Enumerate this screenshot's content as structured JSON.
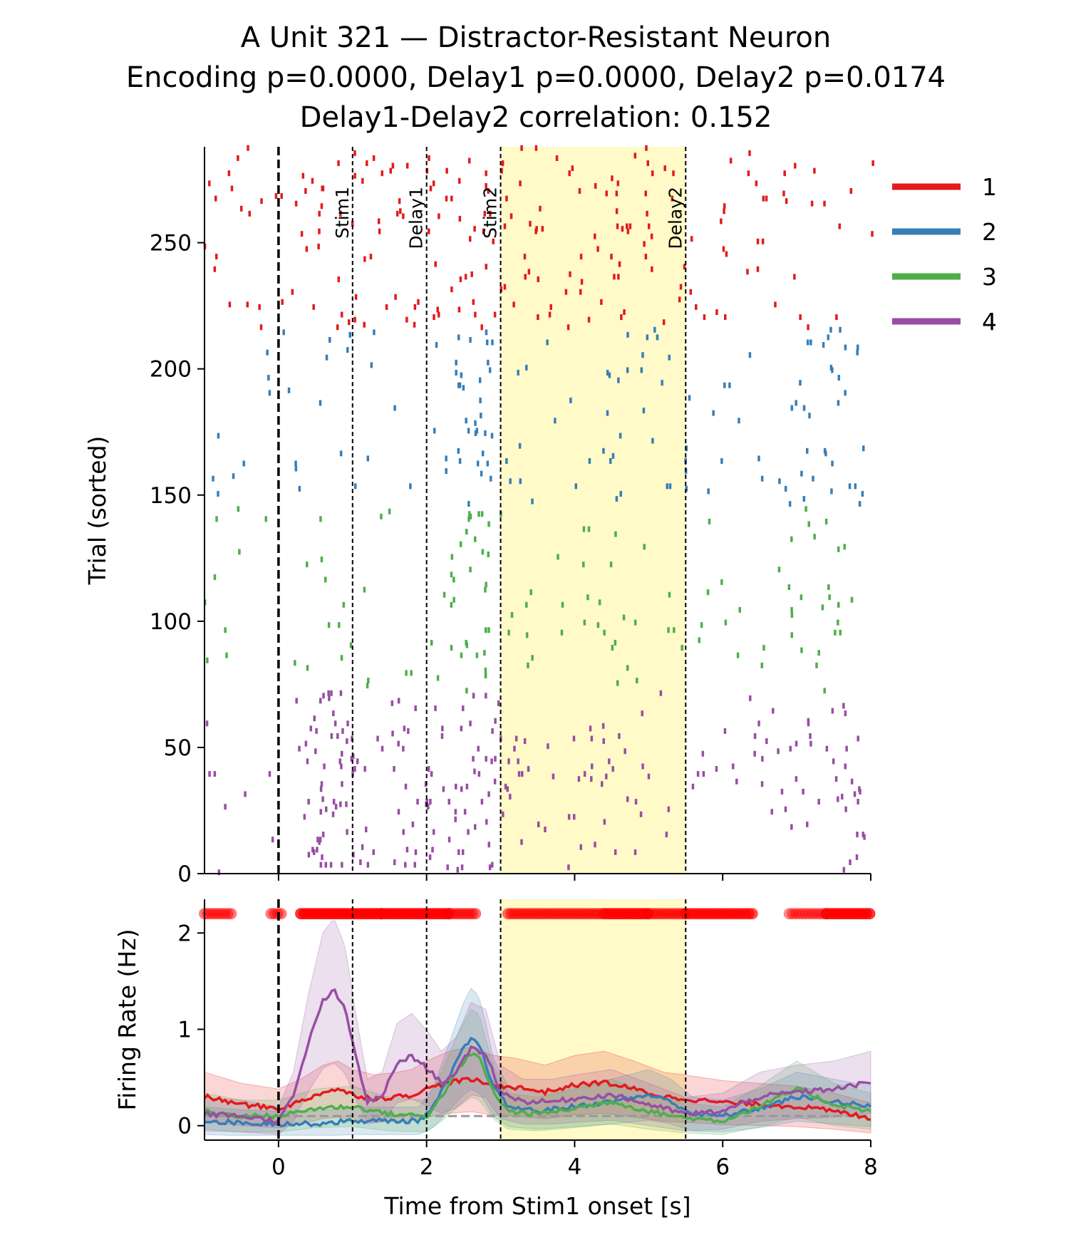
{
  "title": {
    "line1": "A Unit 321 — Distractor-Resistant Neuron",
    "line2": "Encoding p=0.0000, Delay1 p=0.0000, Delay2 p=0.0174",
    "line3": "Delay1-Delay2 correlation: 0.152"
  },
  "colors": {
    "cond1": "#e41a1c",
    "cond2": "#377eb8",
    "cond3": "#4daf4a",
    "cond4": "#984ea3",
    "highlight": "#fffac8",
    "baseline": "#999999",
    "signif": "#ff0000"
  },
  "chart_data": [
    {
      "type": "scatter",
      "subtype": "raster",
      "xlim": [
        -1,
        8
      ],
      "ylim": [
        0,
        288
      ],
      "ylabel": "Trial (sorted)",
      "yticks": [
        "0",
        "50",
        "100",
        "150",
        "200",
        "250"
      ],
      "ytick_values": [
        0,
        50,
        100,
        150,
        200,
        250
      ],
      "events": [
        {
          "t": 0,
          "label": "",
          "style": "bold"
        },
        {
          "t": 1,
          "label": "Stim1"
        },
        {
          "t": 2,
          "label": "Delay1"
        },
        {
          "t": 3,
          "label": "Stim2"
        },
        {
          "t": 5.5,
          "label": "Delay2"
        }
      ],
      "highlight_window": [
        3,
        5.5
      ],
      "condition_trial_ranges": [
        [
          0,
          72
        ],
        [
          72,
          145
        ],
        [
          145,
          216
        ],
        [
          216,
          288
        ]
      ],
      "condition_order_bottom_to_top": [
        "4",
        "3",
        "2",
        "1"
      ],
      "spike_density_note": "spikes drawn per condition; elevated rates follow the firing-rate traces"
    },
    {
      "type": "line",
      "xlabel": "Time from Stim1 onset [s]",
      "ylabel": "Firing Rate (Hz)",
      "xlim": [
        -1,
        8
      ],
      "ylim": [
        -0.15,
        2.35
      ],
      "xticks": [
        "0",
        "2",
        "4",
        "6",
        "8"
      ],
      "xtick_values": [
        0,
        2,
        4,
        6,
        8
      ],
      "yticks": [
        "0",
        "1",
        "2"
      ],
      "ytick_values": [
        0,
        1,
        2
      ],
      "baseline": 0.1,
      "legend": {
        "placement": "outside-right",
        "entries": [
          "1",
          "2",
          "3",
          "4"
        ]
      },
      "series": [
        {
          "name": "1",
          "x": [
            -1,
            -0.5,
            0,
            0.3,
            0.6,
            0.8,
            1,
            1.3,
            1.6,
            1.8,
            2,
            2.3,
            2.6,
            2.9,
            3.2,
            3.6,
            4,
            4.4,
            4.8,
            5.2,
            5.5,
            6,
            6.5,
            7,
            7.5,
            8
          ],
          "values": [
            0.3,
            0.22,
            0.18,
            0.25,
            0.35,
            0.38,
            0.32,
            0.28,
            0.3,
            0.32,
            0.38,
            0.45,
            0.48,
            0.42,
            0.4,
            0.35,
            0.42,
            0.45,
            0.38,
            0.3,
            0.28,
            0.24,
            0.22,
            0.2,
            0.15,
            0.08
          ]
        },
        {
          "name": "2",
          "x": [
            -1,
            -0.5,
            0,
            0.5,
            1,
            1.5,
            1.9,
            2.1,
            2.3,
            2.5,
            2.6,
            2.7,
            2.8,
            2.9,
            3.1,
            3.5,
            4,
            4.5,
            5,
            5.3,
            5.6,
            6,
            6.5,
            7,
            7.5,
            8
          ],
          "values": [
            0.05,
            0.03,
            0.02,
            0.02,
            0.05,
            0.05,
            0.05,
            0.2,
            0.5,
            0.8,
            0.9,
            0.85,
            0.65,
            0.4,
            0.2,
            0.15,
            0.2,
            0.25,
            0.32,
            0.25,
            0.12,
            0.1,
            0.18,
            0.3,
            0.25,
            0.2
          ]
        },
        {
          "name": "3",
          "x": [
            -1,
            -0.5,
            0,
            0.5,
            1,
            1.5,
            2,
            2.2,
            2.4,
            2.6,
            2.7,
            2.9,
            3.1,
            3.5,
            4,
            4.5,
            5,
            5.5,
            6,
            6.5,
            7,
            7.5,
            8
          ],
          "values": [
            0.15,
            0.1,
            0.1,
            0.18,
            0.2,
            0.12,
            0.1,
            0.3,
            0.55,
            0.75,
            0.72,
            0.35,
            0.15,
            0.12,
            0.18,
            0.25,
            0.15,
            0.08,
            0.05,
            0.2,
            0.38,
            0.22,
            0.15
          ]
        },
        {
          "name": "4",
          "x": [
            -1,
            -0.5,
            0,
            0.2,
            0.4,
            0.6,
            0.75,
            0.9,
            1.05,
            1.2,
            1.4,
            1.6,
            1.8,
            2,
            2.2,
            2.4,
            2.6,
            2.8,
            3,
            3.3,
            3.7,
            4,
            4.5,
            5,
            5.5,
            6,
            6.5,
            7,
            7.5,
            8
          ],
          "values": [
            0.12,
            0.1,
            0.05,
            0.3,
            0.85,
            1.3,
            1.4,
            1.2,
            0.7,
            0.25,
            0.3,
            0.65,
            0.72,
            0.6,
            0.45,
            0.55,
            0.8,
            0.75,
            0.35,
            0.25,
            0.25,
            0.28,
            0.32,
            0.22,
            0.12,
            0.15,
            0.3,
            0.35,
            0.38,
            0.45
          ]
        }
      ],
      "significance_markers": {
        "y": 2.2,
        "segments": [
          [
            -1,
            -0.6,
            0.5
          ],
          [
            -0.1,
            0.05,
            0.5
          ],
          [
            0.3,
            1.4,
            1
          ],
          [
            1.4,
            2.3,
            1
          ],
          [
            2.3,
            2.7,
            0.6
          ],
          [
            3.1,
            4.4,
            0.6
          ],
          [
            4.4,
            5.0,
            1
          ],
          [
            5.0,
            5.5,
            0.6
          ],
          [
            5.5,
            6.4,
            0.8
          ],
          [
            6.9,
            7.4,
            0.4
          ],
          [
            7.4,
            8,
            1
          ]
        ]
      }
    }
  ]
}
